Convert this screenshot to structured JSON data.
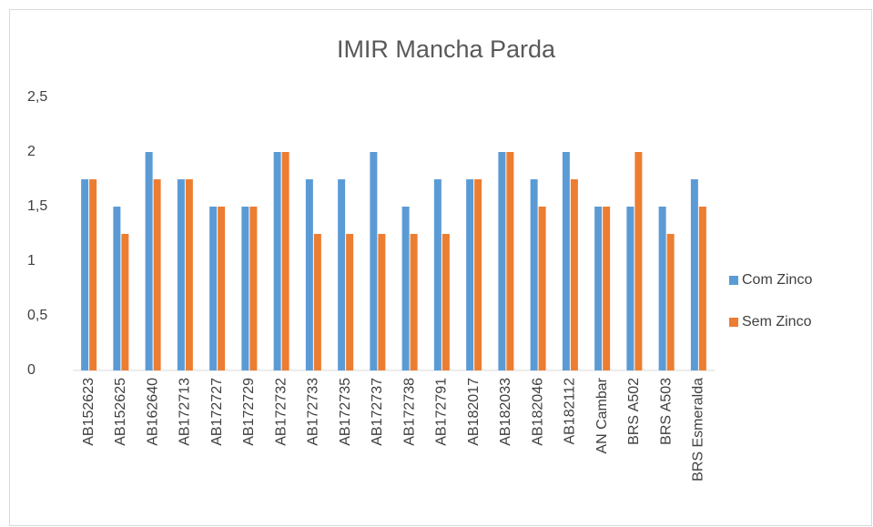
{
  "chart_data": {
    "type": "bar",
    "title": "IMIR Mancha Parda",
    "categories": [
      "AB152623",
      "AB152625",
      "AB162640",
      "AB172713",
      "AB172727",
      "AB172729",
      "AB172732",
      "AB172733",
      "AB172735",
      "AB172737",
      "AB172738",
      "AB172791",
      "AB182017",
      "AB182033",
      "AB182046",
      "AB182112",
      "AN Cambar",
      "BRS A502",
      "BRS A503",
      "BRS Esmeralda"
    ],
    "series": [
      {
        "name": "Com Zinco",
        "color": "#5b9bd5",
        "values": [
          1.75,
          1.5,
          2,
          1.75,
          1.5,
          1.5,
          2,
          1.75,
          1.75,
          2,
          1.5,
          1.75,
          1.75,
          2,
          1.75,
          2,
          1.5,
          1.5,
          1.5,
          1.75
        ]
      },
      {
        "name": "Sem Zinco",
        "color": "#ed7d31",
        "values": [
          1.75,
          1.25,
          1.75,
          1.75,
          1.5,
          1.5,
          2,
          1.25,
          1.25,
          1.25,
          1.25,
          1.25,
          1.75,
          2,
          1.5,
          1.75,
          1.5,
          2,
          1.25,
          1.5
        ]
      }
    ],
    "ylim": [
      0,
      2.5
    ],
    "yticks": [
      0,
      {
        "value": 0.5,
        "label": "0,5"
      },
      1,
      {
        "value": 1.5,
        "label": "1,5"
      },
      2,
      {
        "value": 2.5,
        "label": "2,5"
      }
    ],
    "grid": false,
    "legend": "right"
  }
}
